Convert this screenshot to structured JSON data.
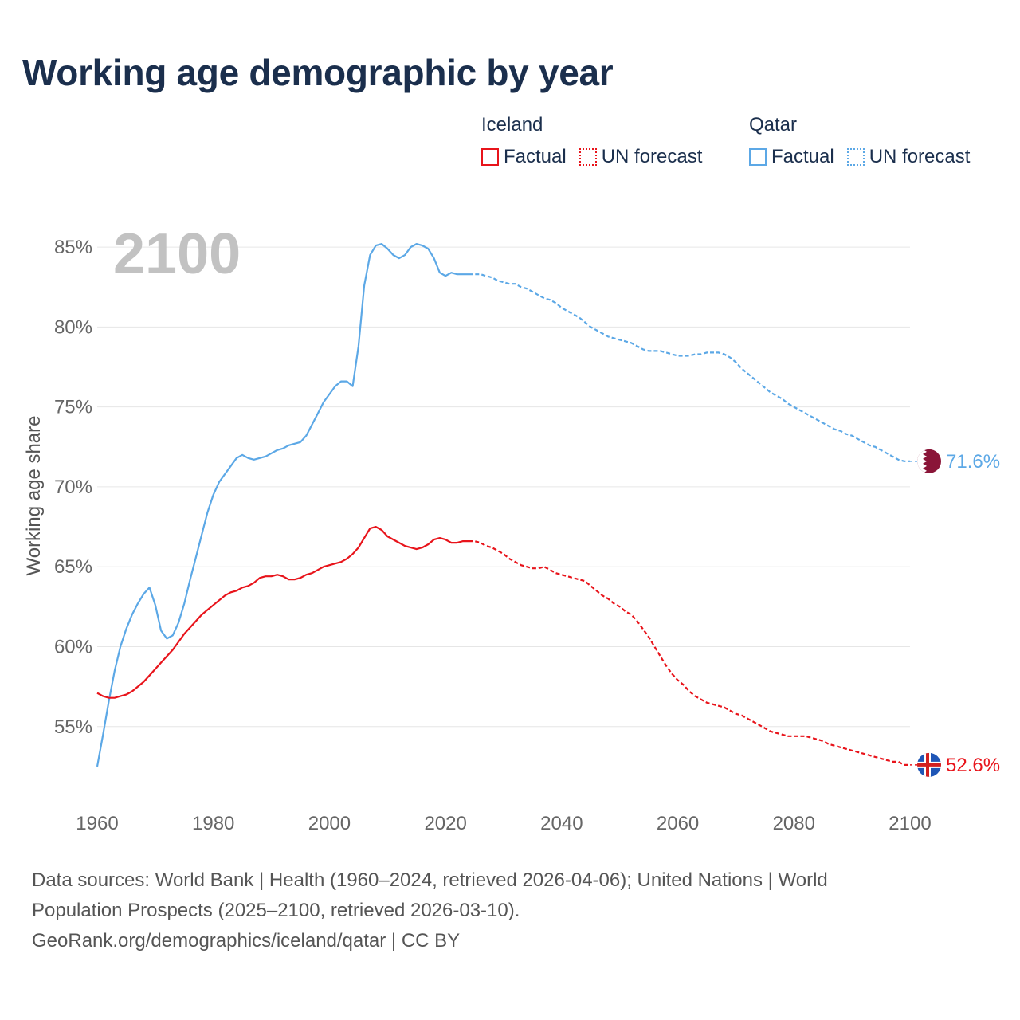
{
  "title": "Working age demographic by year",
  "legend": {
    "groups": [
      {
        "country": "Iceland",
        "color": "#e8141b",
        "factual_label": "Factual",
        "forecast_label": "UN forecast"
      },
      {
        "country": "Qatar",
        "color": "#5ca8e6",
        "factual_label": "Factual",
        "forecast_label": "UN forecast"
      }
    ]
  },
  "year_watermark": "2100",
  "sources": {
    "line1": "Data sources: World Bank | Health (1960–2024, retrieved 2026-04-06); United Nations | World",
    "line2": "Population Prospects (2025–2100, retrieved 2026-03-10).",
    "line3": "GeoRank.org/demographics/iceland/qatar | CC BY"
  },
  "chart_data": {
    "type": "line",
    "title": "Working age demographic by year",
    "xlabel": "",
    "ylabel": "Working age share",
    "xlim": [
      1960,
      2100
    ],
    "ylim": [
      50.5,
      86.5
    ],
    "x_ticks": [
      1960,
      1980,
      2000,
      2020,
      2040,
      2060,
      2080,
      2100
    ],
    "x_tick_labels": [
      "1960",
      "1980",
      "2000",
      "2020",
      "2040",
      "2060",
      "2080",
      "2100"
    ],
    "y_ticks": [
      55,
      60,
      65,
      70,
      75,
      80,
      85
    ],
    "y_tick_labels": [
      "55%",
      "60%",
      "65%",
      "70%",
      "75%",
      "80%",
      "85%"
    ],
    "grid": true,
    "factual_end_year": 2024,
    "series": [
      {
        "name": "Qatar",
        "color": "#5ca8e6",
        "flag_colors": [
          "#ffffff",
          "#8a1538"
        ],
        "end_label": "71.6%",
        "points": [
          [
            1960,
            52.5
          ],
          [
            1961,
            54.5
          ],
          [
            1962,
            56.6
          ],
          [
            1963,
            58.5
          ],
          [
            1964,
            60.0
          ],
          [
            1965,
            61.1
          ],
          [
            1966,
            62.0
          ],
          [
            1967,
            62.7
          ],
          [
            1968,
            63.3
          ],
          [
            1969,
            63.7
          ],
          [
            1970,
            62.6
          ],
          [
            1971,
            61.0
          ],
          [
            1972,
            60.5
          ],
          [
            1973,
            60.7
          ],
          [
            1974,
            61.5
          ],
          [
            1975,
            62.7
          ],
          [
            1976,
            64.2
          ],
          [
            1977,
            65.6
          ],
          [
            1978,
            67.0
          ],
          [
            1979,
            68.4
          ],
          [
            1980,
            69.5
          ],
          [
            1981,
            70.3
          ],
          [
            1982,
            70.8
          ],
          [
            1983,
            71.3
          ],
          [
            1984,
            71.8
          ],
          [
            1985,
            72.0
          ],
          [
            1986,
            71.8
          ],
          [
            1987,
            71.7
          ],
          [
            1988,
            71.8
          ],
          [
            1989,
            71.9
          ],
          [
            1990,
            72.1
          ],
          [
            1991,
            72.3
          ],
          [
            1992,
            72.4
          ],
          [
            1993,
            72.6
          ],
          [
            1994,
            72.7
          ],
          [
            1995,
            72.8
          ],
          [
            1996,
            73.2
          ],
          [
            1997,
            73.9
          ],
          [
            1998,
            74.6
          ],
          [
            1999,
            75.3
          ],
          [
            2000,
            75.8
          ],
          [
            2001,
            76.3
          ],
          [
            2002,
            76.6
          ],
          [
            2003,
            76.6
          ],
          [
            2004,
            76.3
          ],
          [
            2005,
            78.8
          ],
          [
            2006,
            82.6
          ],
          [
            2007,
            84.5
          ],
          [
            2008,
            85.1
          ],
          [
            2009,
            85.2
          ],
          [
            2010,
            84.9
          ],
          [
            2011,
            84.5
          ],
          [
            2012,
            84.3
          ],
          [
            2013,
            84.5
          ],
          [
            2014,
            85.0
          ],
          [
            2015,
            85.2
          ],
          [
            2016,
            85.1
          ],
          [
            2017,
            84.9
          ],
          [
            2018,
            84.3
          ],
          [
            2019,
            83.4
          ],
          [
            2020,
            83.2
          ],
          [
            2021,
            83.4
          ],
          [
            2022,
            83.3
          ],
          [
            2023,
            83.3
          ],
          [
            2024,
            83.3
          ],
          [
            2025,
            83.3
          ],
          [
            2026,
            83.3
          ],
          [
            2027,
            83.2
          ],
          [
            2028,
            83.1
          ],
          [
            2029,
            82.9
          ],
          [
            2030,
            82.8
          ],
          [
            2031,
            82.7
          ],
          [
            2032,
            82.7
          ],
          [
            2033,
            82.5
          ],
          [
            2034,
            82.4
          ],
          [
            2035,
            82.2
          ],
          [
            2036,
            82.0
          ],
          [
            2037,
            81.8
          ],
          [
            2038,
            81.7
          ],
          [
            2039,
            81.5
          ],
          [
            2040,
            81.2
          ],
          [
            2041,
            81.0
          ],
          [
            2042,
            80.8
          ],
          [
            2043,
            80.6
          ],
          [
            2044,
            80.3
          ],
          [
            2045,
            80.0
          ],
          [
            2046,
            79.8
          ],
          [
            2047,
            79.6
          ],
          [
            2048,
            79.4
          ],
          [
            2049,
            79.3
          ],
          [
            2050,
            79.2
          ],
          [
            2051,
            79.1
          ],
          [
            2052,
            79.0
          ],
          [
            2053,
            78.8
          ],
          [
            2054,
            78.6
          ],
          [
            2055,
            78.5
          ],
          [
            2056,
            78.5
          ],
          [
            2057,
            78.5
          ],
          [
            2058,
            78.4
          ],
          [
            2059,
            78.3
          ],
          [
            2060,
            78.2
          ],
          [
            2061,
            78.2
          ],
          [
            2062,
            78.2
          ],
          [
            2063,
            78.3
          ],
          [
            2064,
            78.3
          ],
          [
            2065,
            78.4
          ],
          [
            2066,
            78.4
          ],
          [
            2067,
            78.4
          ],
          [
            2068,
            78.3
          ],
          [
            2069,
            78.1
          ],
          [
            2070,
            77.8
          ],
          [
            2071,
            77.4
          ],
          [
            2072,
            77.1
          ],
          [
            2073,
            76.8
          ],
          [
            2074,
            76.5
          ],
          [
            2075,
            76.2
          ],
          [
            2076,
            75.9
          ],
          [
            2077,
            75.7
          ],
          [
            2078,
            75.5
          ],
          [
            2079,
            75.2
          ],
          [
            2080,
            75.0
          ],
          [
            2081,
            74.8
          ],
          [
            2082,
            74.6
          ],
          [
            2083,
            74.4
          ],
          [
            2084,
            74.2
          ],
          [
            2085,
            74.0
          ],
          [
            2086,
            73.8
          ],
          [
            2087,
            73.6
          ],
          [
            2088,
            73.5
          ],
          [
            2089,
            73.3
          ],
          [
            2090,
            73.2
          ],
          [
            2091,
            73.0
          ],
          [
            2092,
            72.8
          ],
          [
            2093,
            72.6
          ],
          [
            2094,
            72.5
          ],
          [
            2095,
            72.3
          ],
          [
            2096,
            72.1
          ],
          [
            2097,
            71.9
          ],
          [
            2098,
            71.7
          ],
          [
            2099,
            71.6
          ],
          [
            2100,
            71.6
          ]
        ]
      },
      {
        "name": "Iceland",
        "color": "#e8141b",
        "flag_colors": [
          "#1f56b6",
          "#ffffff",
          "#d21f1f"
        ],
        "end_label": "52.6%",
        "points": [
          [
            1960,
            57.1
          ],
          [
            1961,
            56.9
          ],
          [
            1962,
            56.8
          ],
          [
            1963,
            56.8
          ],
          [
            1964,
            56.9
          ],
          [
            1965,
            57.0
          ],
          [
            1966,
            57.2
          ],
          [
            1967,
            57.5
          ],
          [
            1968,
            57.8
          ],
          [
            1969,
            58.2
          ],
          [
            1970,
            58.6
          ],
          [
            1971,
            59.0
          ],
          [
            1972,
            59.4
          ],
          [
            1973,
            59.8
          ],
          [
            1974,
            60.3
          ],
          [
            1975,
            60.8
          ],
          [
            1976,
            61.2
          ],
          [
            1977,
            61.6
          ],
          [
            1978,
            62.0
          ],
          [
            1979,
            62.3
          ],
          [
            1980,
            62.6
          ],
          [
            1981,
            62.9
          ],
          [
            1982,
            63.2
          ],
          [
            1983,
            63.4
          ],
          [
            1984,
            63.5
          ],
          [
            1985,
            63.7
          ],
          [
            1986,
            63.8
          ],
          [
            1987,
            64.0
          ],
          [
            1988,
            64.3
          ],
          [
            1989,
            64.4
          ],
          [
            1990,
            64.4
          ],
          [
            1991,
            64.5
          ],
          [
            1992,
            64.4
          ],
          [
            1993,
            64.2
          ],
          [
            1994,
            64.2
          ],
          [
            1995,
            64.3
          ],
          [
            1996,
            64.5
          ],
          [
            1997,
            64.6
          ],
          [
            1998,
            64.8
          ],
          [
            1999,
            65.0
          ],
          [
            2000,
            65.1
          ],
          [
            2001,
            65.2
          ],
          [
            2002,
            65.3
          ],
          [
            2003,
            65.5
          ],
          [
            2004,
            65.8
          ],
          [
            2005,
            66.2
          ],
          [
            2006,
            66.8
          ],
          [
            2007,
            67.4
          ],
          [
            2008,
            67.5
          ],
          [
            2009,
            67.3
          ],
          [
            2010,
            66.9
          ],
          [
            2011,
            66.7
          ],
          [
            2012,
            66.5
          ],
          [
            2013,
            66.3
          ],
          [
            2014,
            66.2
          ],
          [
            2015,
            66.1
          ],
          [
            2016,
            66.2
          ],
          [
            2017,
            66.4
          ],
          [
            2018,
            66.7
          ],
          [
            2019,
            66.8
          ],
          [
            2020,
            66.7
          ],
          [
            2021,
            66.5
          ],
          [
            2022,
            66.5
          ],
          [
            2023,
            66.6
          ],
          [
            2024,
            66.6
          ],
          [
            2025,
            66.6
          ],
          [
            2026,
            66.5
          ],
          [
            2027,
            66.3
          ],
          [
            2028,
            66.2
          ],
          [
            2029,
            66.0
          ],
          [
            2030,
            65.8
          ],
          [
            2031,
            65.5
          ],
          [
            2032,
            65.3
          ],
          [
            2033,
            65.1
          ],
          [
            2034,
            65.0
          ],
          [
            2035,
            64.9
          ],
          [
            2036,
            64.9
          ],
          [
            2037,
            65.0
          ],
          [
            2038,
            64.8
          ],
          [
            2039,
            64.6
          ],
          [
            2040,
            64.5
          ],
          [
            2041,
            64.4
          ],
          [
            2042,
            64.3
          ],
          [
            2043,
            64.2
          ],
          [
            2044,
            64.1
          ],
          [
            2045,
            63.8
          ],
          [
            2046,
            63.5
          ],
          [
            2047,
            63.2
          ],
          [
            2048,
            63.0
          ],
          [
            2049,
            62.7
          ],
          [
            2050,
            62.5
          ],
          [
            2051,
            62.2
          ],
          [
            2052,
            62.0
          ],
          [
            2053,
            61.6
          ],
          [
            2054,
            61.1
          ],
          [
            2055,
            60.6
          ],
          [
            2056,
            60.0
          ],
          [
            2057,
            59.4
          ],
          [
            2058,
            58.8
          ],
          [
            2059,
            58.3
          ],
          [
            2060,
            57.9
          ],
          [
            2061,
            57.6
          ],
          [
            2062,
            57.2
          ],
          [
            2063,
            56.9
          ],
          [
            2064,
            56.7
          ],
          [
            2065,
            56.5
          ],
          [
            2066,
            56.4
          ],
          [
            2067,
            56.3
          ],
          [
            2068,
            56.2
          ],
          [
            2069,
            56.0
          ],
          [
            2070,
            55.8
          ],
          [
            2071,
            55.7
          ],
          [
            2072,
            55.5
          ],
          [
            2073,
            55.3
          ],
          [
            2074,
            55.1
          ],
          [
            2075,
            54.9
          ],
          [
            2076,
            54.7
          ],
          [
            2077,
            54.6
          ],
          [
            2078,
            54.5
          ],
          [
            2079,
            54.4
          ],
          [
            2080,
            54.4
          ],
          [
            2081,
            54.4
          ],
          [
            2082,
            54.4
          ],
          [
            2083,
            54.3
          ],
          [
            2084,
            54.2
          ],
          [
            2085,
            54.1
          ],
          [
            2086,
            53.9
          ],
          [
            2087,
            53.8
          ],
          [
            2088,
            53.7
          ],
          [
            2089,
            53.6
          ],
          [
            2090,
            53.5
          ],
          [
            2091,
            53.4
          ],
          [
            2092,
            53.3
          ],
          [
            2093,
            53.2
          ],
          [
            2094,
            53.1
          ],
          [
            2095,
            53.0
          ],
          [
            2096,
            52.9
          ],
          [
            2097,
            52.8
          ],
          [
            2098,
            52.8
          ],
          [
            2099,
            52.6
          ],
          [
            2100,
            52.6
          ]
        ]
      }
    ]
  }
}
